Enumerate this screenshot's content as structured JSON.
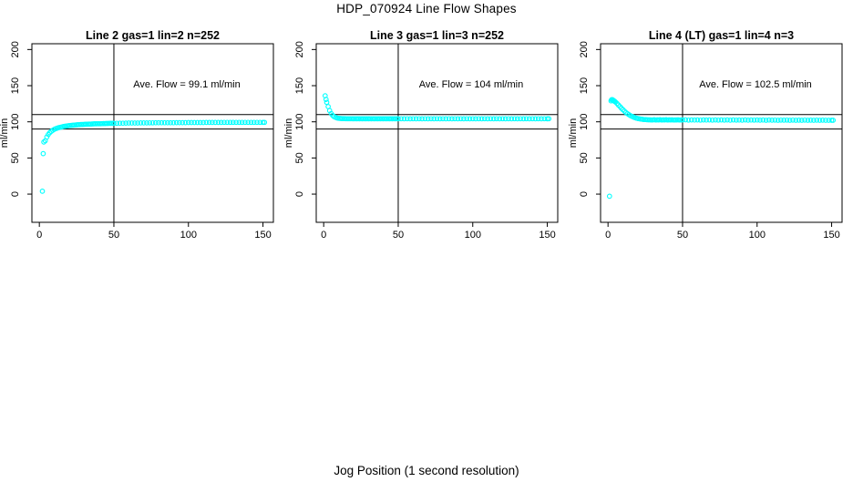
{
  "figure": {
    "title": "HDP_070924  Line Flow Shapes",
    "x_axis_label": "Jog Position (1 second resolution)",
    "background_color": "#ffffff",
    "point_color": "#00ffff",
    "axis_color": "#000000",
    "text_color": "#000000"
  },
  "chart_data": [
    {
      "type": "scatter",
      "title": "Line 2 gas=1 lin=2 n=252",
      "annotation": "Ave. Flow =  99.1  ml/min",
      "ave_flow_ml_min": 99.1,
      "n": 252,
      "ylabel": "ml/min",
      "xticks": [
        0,
        50,
        100,
        150
      ],
      "yticks": [
        0,
        50,
        100,
        150,
        200
      ],
      "xlim": [
        -5,
        157
      ],
      "ylim": [
        -39,
        208
      ],
      "vline_x": 50,
      "hlines_y": [
        90,
        110
      ],
      "grid": false,
      "points": [
        [
          2,
          4
        ],
        [
          2.6,
          56
        ],
        [
          3,
          72
        ],
        [
          4,
          73.8
        ],
        [
          5,
          79
        ],
        [
          6,
          82.5
        ],
        [
          7,
          85
        ],
        [
          8,
          86.9
        ],
        [
          9,
          88.3
        ],
        [
          10,
          89.5
        ],
        [
          11,
          90.5
        ],
        [
          12,
          91.3
        ],
        [
          13,
          91.9
        ],
        [
          14,
          92.5
        ],
        [
          15,
          93
        ],
        [
          16,
          93.4
        ],
        [
          17,
          93.8
        ],
        [
          18,
          94.2
        ],
        [
          19,
          94.5
        ],
        [
          20,
          94.8
        ],
        [
          21,
          95
        ],
        [
          22,
          95.2
        ],
        [
          23,
          95.4
        ],
        [
          24,
          95.6
        ],
        [
          25,
          95.8
        ],
        [
          26,
          96
        ],
        [
          27,
          96.1
        ],
        [
          28,
          96.3
        ],
        [
          29,
          96.4
        ],
        [
          30,
          96.5
        ],
        [
          31,
          96.6
        ],
        [
          32,
          96.7
        ],
        [
          33,
          96.8
        ],
        [
          34,
          96.9
        ],
        [
          35,
          97
        ],
        [
          36,
          97.1
        ],
        [
          37,
          97.2
        ],
        [
          38,
          97.2
        ],
        [
          39,
          97.3
        ],
        [
          40,
          97.4
        ],
        [
          41,
          97.4
        ],
        [
          42,
          97.5
        ],
        [
          43,
          97.6
        ],
        [
          44,
          97.6
        ],
        [
          45,
          97.7
        ],
        [
          46,
          97.7
        ],
        [
          47,
          97.8
        ],
        [
          48,
          97.8
        ],
        [
          49,
          97.9
        ],
        [
          50,
          97.9
        ],
        [
          52,
          98
        ],
        [
          54,
          98.1
        ],
        [
          56,
          98.1
        ],
        [
          58,
          98.2
        ],
        [
          60,
          98.3
        ],
        [
          62,
          98.3
        ],
        [
          64,
          98.4
        ],
        [
          66,
          98.4
        ],
        [
          68,
          98.5
        ],
        [
          70,
          98.5
        ],
        [
          72,
          98.5
        ],
        [
          74,
          98.6
        ],
        [
          76,
          98.6
        ],
        [
          78,
          98.7
        ],
        [
          80,
          98.7
        ],
        [
          82,
          98.7
        ],
        [
          84,
          98.8
        ],
        [
          86,
          98.8
        ],
        [
          88,
          98.8
        ],
        [
          90,
          98.8
        ],
        [
          92,
          98.9
        ],
        [
          94,
          98.9
        ],
        [
          96,
          98.9
        ],
        [
          98,
          98.9
        ],
        [
          100,
          99
        ],
        [
          102,
          99
        ],
        [
          104,
          99
        ],
        [
          106,
          99
        ],
        [
          108,
          99
        ],
        [
          110,
          99
        ],
        [
          112,
          99.1
        ],
        [
          114,
          99.1
        ],
        [
          116,
          99.1
        ],
        [
          118,
          99.1
        ],
        [
          120,
          99.1
        ],
        [
          122,
          99.1
        ],
        [
          124,
          99.2
        ],
        [
          126,
          99.2
        ],
        [
          128,
          99.2
        ],
        [
          130,
          99.2
        ],
        [
          132,
          99.2
        ],
        [
          134,
          99.2
        ],
        [
          136,
          99.2
        ],
        [
          138,
          99.2
        ],
        [
          140,
          99.3
        ],
        [
          142,
          99.3
        ],
        [
          144,
          99.3
        ],
        [
          146,
          99.3
        ],
        [
          148,
          99.3
        ],
        [
          150,
          99.3
        ],
        [
          151,
          99.3
        ]
      ]
    },
    {
      "type": "scatter",
      "title": "Line 3 gas=1 lin=3 n=252",
      "annotation": "Ave. Flow =  104  ml/min",
      "ave_flow_ml_min": 104,
      "n": 252,
      "ylabel": "ml/min",
      "xticks": [
        0,
        50,
        100,
        150
      ],
      "yticks": [
        0,
        50,
        100,
        150,
        200
      ],
      "xlim": [
        -5,
        157
      ],
      "ylim": [
        -39,
        208
      ],
      "vline_x": 50,
      "hlines_y": [
        90,
        110
      ],
      "grid": false,
      "points": [
        [
          1,
          136
        ],
        [
          1.6,
          131
        ],
        [
          2,
          127
        ],
        [
          3,
          121
        ],
        [
          4,
          115.5
        ],
        [
          5,
          111.5
        ],
        [
          6,
          108.8
        ],
        [
          7,
          107.1
        ],
        [
          8,
          106
        ],
        [
          9,
          105.3
        ],
        [
          10,
          104.9
        ],
        [
          11,
          104.7
        ],
        [
          12,
          104.5
        ],
        [
          13,
          104.4
        ],
        [
          14,
          104.4
        ],
        [
          15,
          104.3
        ],
        [
          16,
          104.3
        ],
        [
          17,
          104.3
        ],
        [
          18,
          104.3
        ],
        [
          19,
          104.3
        ],
        [
          20,
          104.2
        ],
        [
          21,
          104.3
        ],
        [
          22,
          104.2
        ],
        [
          23,
          104.3
        ],
        [
          24,
          104.2
        ],
        [
          25,
          104.3
        ],
        [
          26,
          104.2
        ],
        [
          27,
          104.3
        ],
        [
          28,
          104.2
        ],
        [
          29,
          104.3
        ],
        [
          30,
          104.2
        ],
        [
          31,
          104.3
        ],
        [
          32,
          104.2
        ],
        [
          33,
          104.3
        ],
        [
          34,
          104.2
        ],
        [
          35,
          104.3
        ],
        [
          36,
          104.2
        ],
        [
          37,
          104.3
        ],
        [
          38,
          104.2
        ],
        [
          39,
          104.3
        ],
        [
          40,
          104.2
        ],
        [
          41,
          104.3
        ],
        [
          42,
          104.2
        ],
        [
          43,
          104.3
        ],
        [
          44,
          104.2
        ],
        [
          45,
          104.3
        ],
        [
          46,
          104.2
        ],
        [
          47,
          104.3
        ],
        [
          48,
          104.2
        ],
        [
          49,
          104.3
        ],
        [
          50,
          104.2
        ],
        [
          52,
          104.3
        ],
        [
          54,
          104.2
        ],
        [
          56,
          104.3
        ],
        [
          58,
          104.2
        ],
        [
          60,
          104.3
        ],
        [
          62,
          104.2
        ],
        [
          64,
          104.3
        ],
        [
          66,
          104.2
        ],
        [
          68,
          104.3
        ],
        [
          70,
          104.2
        ],
        [
          72,
          104.3
        ],
        [
          74,
          104.2
        ],
        [
          76,
          104.3
        ],
        [
          78,
          104.2
        ],
        [
          80,
          104.3
        ],
        [
          82,
          104.2
        ],
        [
          84,
          104.3
        ],
        [
          86,
          104.2
        ],
        [
          88,
          104.3
        ],
        [
          90,
          104.2
        ],
        [
          92,
          104.3
        ],
        [
          94,
          104.2
        ],
        [
          96,
          104.3
        ],
        [
          98,
          104.2
        ],
        [
          100,
          104.3
        ],
        [
          102,
          104.2
        ],
        [
          104,
          104.3
        ],
        [
          106,
          104.2
        ],
        [
          108,
          104.3
        ],
        [
          110,
          104.2
        ],
        [
          112,
          104.3
        ],
        [
          114,
          104.2
        ],
        [
          116,
          104.3
        ],
        [
          118,
          104.2
        ],
        [
          120,
          104.3
        ],
        [
          122,
          104.2
        ],
        [
          124,
          104.3
        ],
        [
          126,
          104.2
        ],
        [
          128,
          104.3
        ],
        [
          130,
          104.2
        ],
        [
          132,
          104.3
        ],
        [
          134,
          104.2
        ],
        [
          136,
          104.3
        ],
        [
          138,
          104.2
        ],
        [
          140,
          104.3
        ],
        [
          142,
          104.2
        ],
        [
          144,
          104.3
        ],
        [
          146,
          104.2
        ],
        [
          148,
          104.3
        ],
        [
          150,
          104.2
        ],
        [
          151,
          104.3
        ]
      ]
    },
    {
      "type": "scatter",
      "title": "Line 4 (LT) gas=1 lin=4 n=3",
      "annotation": "Ave. Flow =  102.5  ml/min",
      "ave_flow_ml_min": 102.5,
      "n": 3,
      "ylabel": "ml/min",
      "xticks": [
        0,
        50,
        100,
        150
      ],
      "yticks": [
        0,
        50,
        100,
        150,
        200
      ],
      "xlim": [
        -5,
        157
      ],
      "ylim": [
        -39,
        208
      ],
      "vline_x": 50,
      "hlines_y": [
        90,
        110
      ],
      "grid": false,
      "points": [
        [
          1,
          -3
        ],
        [
          2,
          129
        ],
        [
          2.4,
          130.5
        ],
        [
          2.8,
          130.8
        ],
        [
          3.2,
          130.2
        ],
        [
          3.6,
          129.6
        ],
        [
          4,
          129
        ],
        [
          4.5,
          128.2
        ],
        [
          5,
          127.4
        ],
        [
          6,
          125.4
        ],
        [
          7,
          123.2
        ],
        [
          8,
          121
        ],
        [
          9,
          118.8
        ],
        [
          10,
          116.7
        ],
        [
          11,
          114.7
        ],
        [
          12,
          112.9
        ],
        [
          13,
          111.3
        ],
        [
          14,
          109.9
        ],
        [
          15,
          108.6
        ],
        [
          16,
          107.5
        ],
        [
          17,
          106.6
        ],
        [
          18,
          105.8
        ],
        [
          19,
          105.1
        ],
        [
          20,
          104.6
        ],
        [
          21,
          104.1
        ],
        [
          22,
          103.8
        ],
        [
          23,
          103.5
        ],
        [
          24,
          103.2
        ],
        [
          25,
          103.1
        ],
        [
          26,
          102.9
        ],
        [
          27,
          102.8
        ],
        [
          28,
          102.8
        ],
        [
          29,
          102.7
        ],
        [
          30,
          102.7
        ],
        [
          31,
          103
        ],
        [
          32,
          102.5
        ],
        [
          33,
          102.8
        ],
        [
          34,
          102.6
        ],
        [
          35,
          102.9
        ],
        [
          36,
          102.5
        ],
        [
          37,
          102.8
        ],
        [
          38,
          102.6
        ],
        [
          39,
          102.9
        ],
        [
          40,
          102.5
        ],
        [
          41,
          102.8
        ],
        [
          42,
          102.6
        ],
        [
          43,
          102.8
        ],
        [
          44,
          102.5
        ],
        [
          45,
          102.7
        ],
        [
          46,
          102.6
        ],
        [
          47,
          102.8
        ],
        [
          48,
          102.5
        ],
        [
          49,
          102.7
        ],
        [
          50,
          102.6
        ],
        [
          52,
          102.8
        ],
        [
          54,
          102.4
        ],
        [
          56,
          102.7
        ],
        [
          58,
          102.5
        ],
        [
          60,
          102.7
        ],
        [
          62,
          102.4
        ],
        [
          64,
          102.7
        ],
        [
          66,
          102.5
        ],
        [
          68,
          102.6
        ],
        [
          70,
          102.4
        ],
        [
          72,
          102.7
        ],
        [
          74,
          102.4
        ],
        [
          76,
          102.6
        ],
        [
          78,
          102.4
        ],
        [
          80,
          102.6
        ],
        [
          82,
          102.3
        ],
        [
          84,
          102.6
        ],
        [
          86,
          102.4
        ],
        [
          88,
          102.5
        ],
        [
          90,
          102.3
        ],
        [
          92,
          102.6
        ],
        [
          94,
          102.3
        ],
        [
          96,
          102.5
        ],
        [
          98,
          102.4
        ],
        [
          100,
          102.5
        ],
        [
          102,
          102.3
        ],
        [
          104,
          102.5
        ],
        [
          106,
          102.2
        ],
        [
          108,
          102.5
        ],
        [
          110,
          102.3
        ],
        [
          112,
          102.4
        ],
        [
          114,
          102.2
        ],
        [
          116,
          102.4
        ],
        [
          118,
          102.3
        ],
        [
          120,
          102.4
        ],
        [
          122,
          102.2
        ],
        [
          124,
          102.4
        ],
        [
          126,
          102.2
        ],
        [
          128,
          102.3
        ],
        [
          130,
          102.2
        ],
        [
          132,
          102.4
        ],
        [
          134,
          102.1
        ],
        [
          136,
          102.3
        ],
        [
          138,
          102.2
        ],
        [
          140,
          102.3
        ],
        [
          142,
          102.1
        ],
        [
          144,
          102.3
        ],
        [
          146,
          102.2
        ],
        [
          148,
          102.2
        ],
        [
          150,
          102.1
        ],
        [
          151,
          102.2
        ]
      ]
    }
  ]
}
